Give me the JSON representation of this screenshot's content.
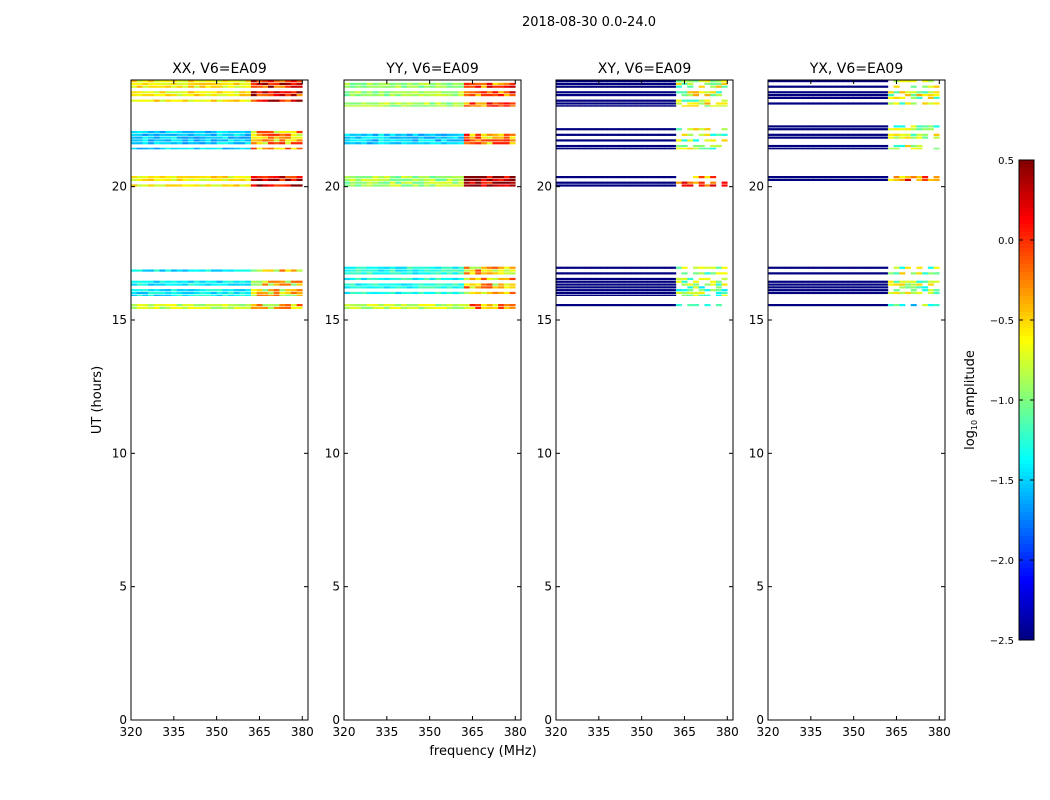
{
  "figure": {
    "suptitle": "2018-08-30 0.0-24.0",
    "xlabel": "frequency (MHz)",
    "ylabel": "UT (hours)"
  },
  "colorbar": {
    "label_prefix": "log",
    "label_sub": "10",
    "label_suffix": " amplitude",
    "range": [
      -2.5,
      0.5
    ],
    "ticks": [
      0.5,
      0.0,
      -0.5,
      -1.0,
      -1.5,
      -2.0,
      -2.5
    ],
    "tick_labels": [
      "0.5",
      "0.0",
      "−0.5",
      "−1.0",
      "−1.5",
      "−2.0",
      "−2.5"
    ],
    "colormap": "jet"
  },
  "chart_data": {
    "type": "heatmap",
    "x_range": [
      320,
      382
    ],
    "y_range": [
      0,
      24
    ],
    "x_ticks": [
      320,
      335,
      350,
      365,
      380
    ],
    "y_ticks": [
      0,
      5,
      10,
      15,
      20
    ],
    "panels": [
      {
        "title": "XX, V6=EA09",
        "kind": "parallel",
        "rows": [
          {
            "y0": 23.0,
            "y1": 24.0,
            "base": -0.6,
            "mid": 0.1
          },
          {
            "y0": 21.4,
            "y1": 22.3,
            "base": -1.5,
            "mid": -0.4
          },
          {
            "y0": 20.0,
            "y1": 20.4,
            "base": -0.6,
            "mid": 0.3
          },
          {
            "y0": 15.9,
            "y1": 17.0,
            "base": -1.4,
            "mid": -0.6
          },
          {
            "y0": 15.4,
            "y1": 15.6,
            "base": -0.8,
            "mid": -0.5
          }
        ]
      },
      {
        "title": "YY, V6=EA09",
        "kind": "parallel",
        "rows": [
          {
            "y0": 23.0,
            "y1": 24.0,
            "base": -0.9,
            "mid": -0.1
          },
          {
            "y0": 21.4,
            "y1": 22.3,
            "base": -1.5,
            "mid": -0.3
          },
          {
            "y0": 20.0,
            "y1": 20.4,
            "base": -0.9,
            "mid": 0.4
          },
          {
            "y0": 15.9,
            "y1": 17.0,
            "base": -1.3,
            "mid": -0.5
          },
          {
            "y0": 15.4,
            "y1": 15.6,
            "base": -0.8,
            "mid": -0.4
          }
        ]
      },
      {
        "title": "XY, V6=EA09",
        "kind": "cross",
        "rows": [
          {
            "y0": 23.0,
            "y1": 24.0,
            "base": -2.5,
            "mid": -0.8
          },
          {
            "y0": 21.4,
            "y1": 22.3,
            "base": -2.5,
            "mid": -0.9
          },
          {
            "y0": 20.0,
            "y1": 20.4,
            "base": -2.5,
            "mid": -0.2
          },
          {
            "y0": 15.9,
            "y1": 17.0,
            "base": -2.5,
            "mid": -1.0
          },
          {
            "y0": 15.4,
            "y1": 15.6,
            "base": -2.5,
            "mid": -1.2
          }
        ]
      },
      {
        "title": "YX, V6=EA09",
        "kind": "cross",
        "rows": [
          {
            "y0": 23.0,
            "y1": 24.0,
            "base": -2.5,
            "mid": -0.8
          },
          {
            "y0": 21.4,
            "y1": 22.3,
            "base": -2.5,
            "mid": -0.9
          },
          {
            "y0": 20.0,
            "y1": 20.4,
            "base": -2.5,
            "mid": -0.2
          },
          {
            "y0": 15.9,
            "y1": 17.0,
            "base": -2.5,
            "mid": -0.9
          },
          {
            "y0": 15.4,
            "y1": 15.6,
            "base": -2.5,
            "mid": -1.2
          }
        ]
      }
    ]
  }
}
